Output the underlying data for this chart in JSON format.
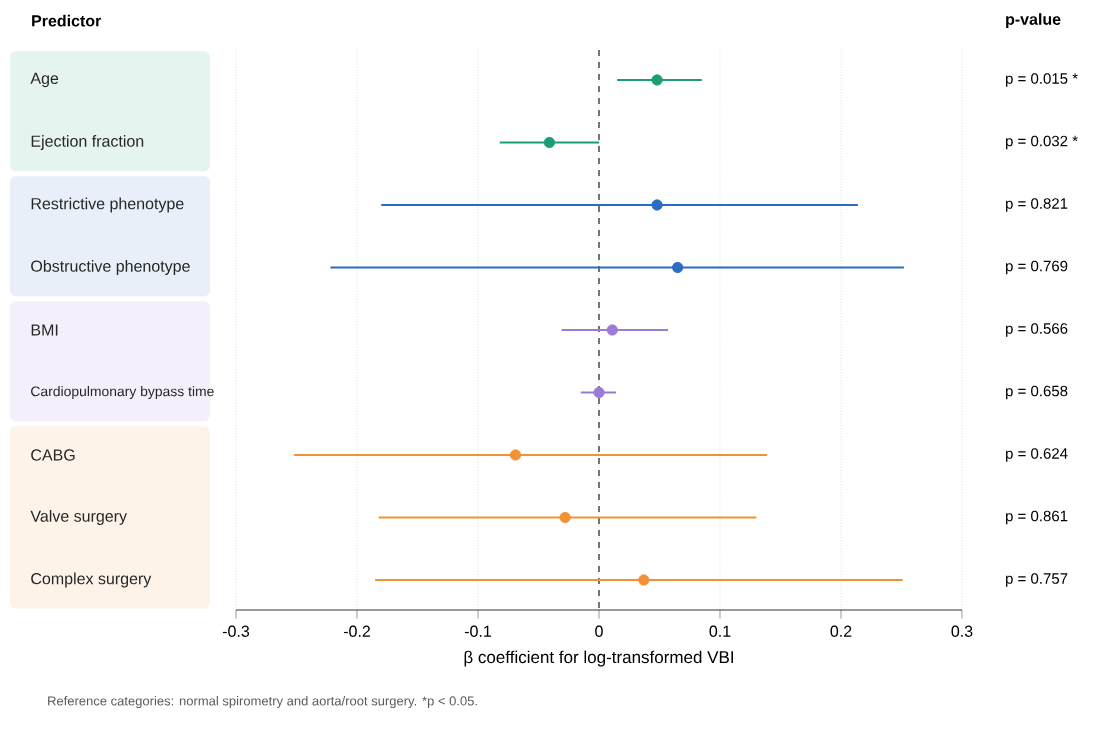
{
  "chart_data": {
    "type": "scatter",
    "orientation": "horizontal",
    "xlabel": "β coefficient for log-transformed VBI",
    "categories": [
      "Age",
      "Ejection fraction",
      "Restrictive phenotype",
      "Obstructive phenotype",
      "BMI",
      "Cardiopulmonary bypass time",
      "CABG",
      "Valve surgery",
      "Complex surgery"
    ],
    "series": [
      {
        "color": "#1b9e77",
        "values": [
          0.048,
          -0.041,
          null,
          null,
          null,
          null,
          null,
          null,
          null
        ],
        "errors": [
          [
            0.015,
            0.085
          ],
          [
            -0.082,
            0.0
          ],
          null,
          null,
          null,
          null,
          null,
          null,
          null
        ]
      },
      {
        "color": "#2b6cc4",
        "values": [
          null,
          null,
          0.048,
          0.065,
          null,
          null,
          null,
          null,
          null
        ],
        "errors": [
          null,
          null,
          [
            -0.18,
            0.214
          ],
          [
            -0.222,
            0.252
          ],
          null,
          null,
          null,
          null,
          null
        ]
      },
      {
        "color": "#9b7ad8",
        "values": [
          null,
          null,
          null,
          null,
          0.011,
          0.0,
          null,
          null,
          null
        ],
        "errors": [
          null,
          null,
          null,
          null,
          [
            -0.031,
            0.057
          ],
          [
            -0.015,
            0.014
          ],
          null,
          null,
          null
        ]
      },
      {
        "color": "#f29238",
        "values": [
          null,
          null,
          null,
          null,
          null,
          null,
          -0.069,
          -0.028,
          0.037
        ],
        "errors": [
          null,
          null,
          null,
          null,
          null,
          null,
          [
            -0.252,
            0.139
          ],
          [
            -0.182,
            0.13
          ],
          [
            -0.185,
            0.251
          ]
        ]
      }
    ],
    "xlim": [
      -0.3,
      0.3
    ],
    "xticks": [
      -0.3,
      -0.2,
      -0.1,
      0,
      0.1,
      0.2,
      0.3
    ],
    "grid": "x",
    "marker": "circle",
    "ref_lines": [
      {
        "axis": "x",
        "value": 0,
        "line_style": "dashed",
        "color": "#555555"
      }
    ],
    "annotations": [
      "Predictor",
      "p-value",
      "p = 0.015 *",
      "p = 0.032 *",
      "p = 0.821",
      "p = 0.769",
      "p = 0.566",
      "p = 0.658",
      "p = 0.624",
      "p = 0.861",
      "p = 0.757",
      "Reference categories: normal spirometry and aorta/root surgery. *p < 0.05."
    ]
  }
}
